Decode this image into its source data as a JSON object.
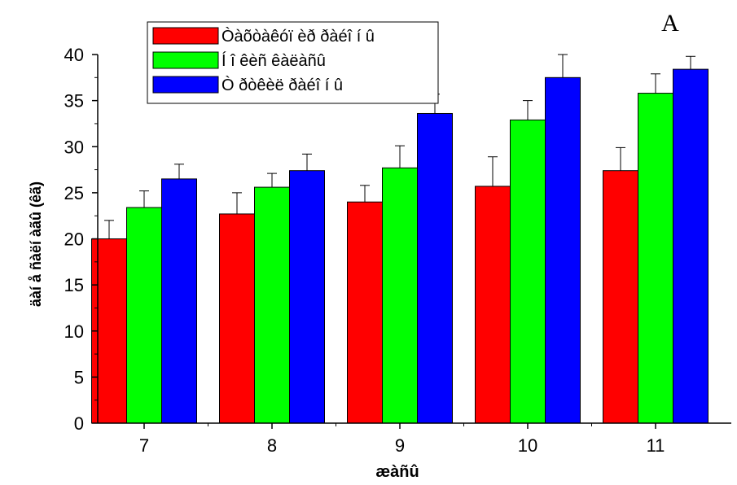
{
  "panel_label": "A",
  "chart_data": {
    "type": "bar",
    "title": "",
    "xlabel": "æàñû",
    "ylabel": "äàí å ñàëí àãû (êã)",
    "categories": [
      "7",
      "8",
      "9",
      "10",
      "11"
    ],
    "ylim": [
      0,
      40
    ],
    "yticks": [
      "0",
      "5",
      "10",
      "15",
      "20",
      "25",
      "30",
      "35",
      "40"
    ],
    "legend_position": "top-left",
    "grid": false,
    "error_bars": true,
    "series": [
      {
        "name": "Òàõòàêóï èð ðàéî í û",
        "color": "#ff0000",
        "values": [
          20.0,
          22.7,
          24.0,
          25.7,
          27.4
        ],
        "errors": [
          2.0,
          2.3,
          1.8,
          3.2,
          2.5
        ]
      },
      {
        "name": "Í î êèñ êàëàñû",
        "color": "#00ff00",
        "values": [
          23.4,
          25.6,
          27.7,
          32.9,
          35.8
        ],
        "errors": [
          1.8,
          1.5,
          2.4,
          2.1,
          2.1
        ]
      },
      {
        "name": "Ò ðòêèë ðàéî í û",
        "color": "#0000ff",
        "values": [
          26.5,
          27.4,
          33.6,
          37.5,
          38.4
        ],
        "errors": [
          1.6,
          1.8,
          2.1,
          2.5,
          1.4
        ]
      }
    ]
  }
}
